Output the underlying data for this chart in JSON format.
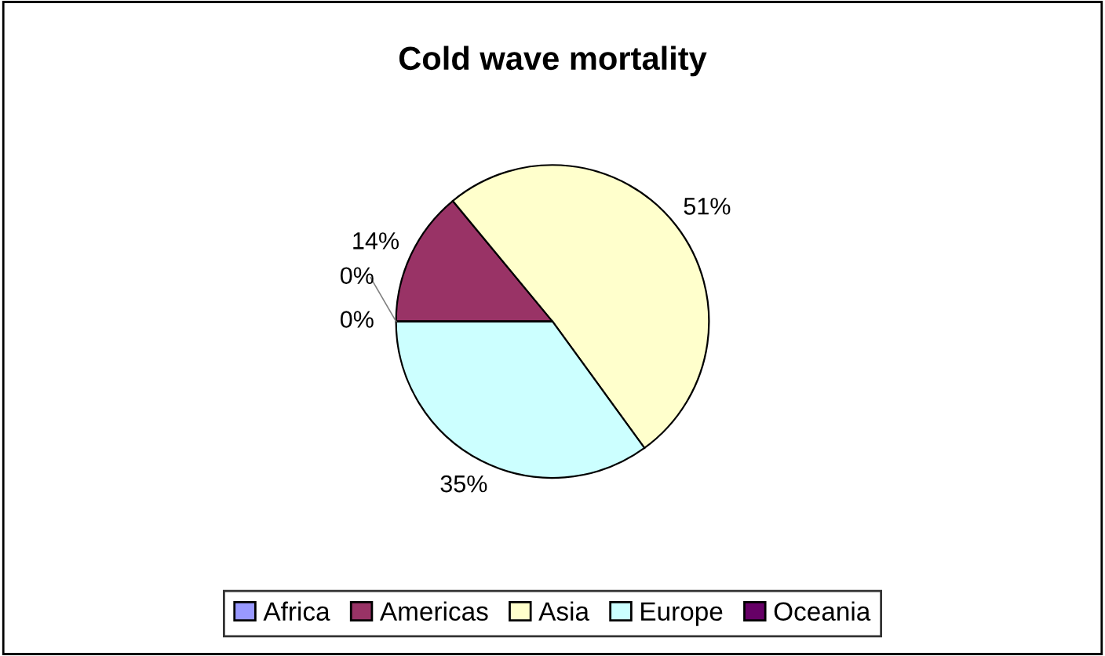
{
  "chart_data": {
    "type": "pie",
    "title": "Cold wave mortality",
    "categories": [
      "Africa",
      "Americas",
      "Asia",
      "Europe",
      "Oceania"
    ],
    "values": [
      0,
      14,
      51,
      35,
      0
    ],
    "value_labels": [
      "0%",
      "14%",
      "51%",
      "35%",
      "0%"
    ],
    "colors": [
      "#9999ff",
      "#993366",
      "#ffffcc",
      "#ccffff",
      "#660066"
    ],
    "legend": "bottom"
  }
}
